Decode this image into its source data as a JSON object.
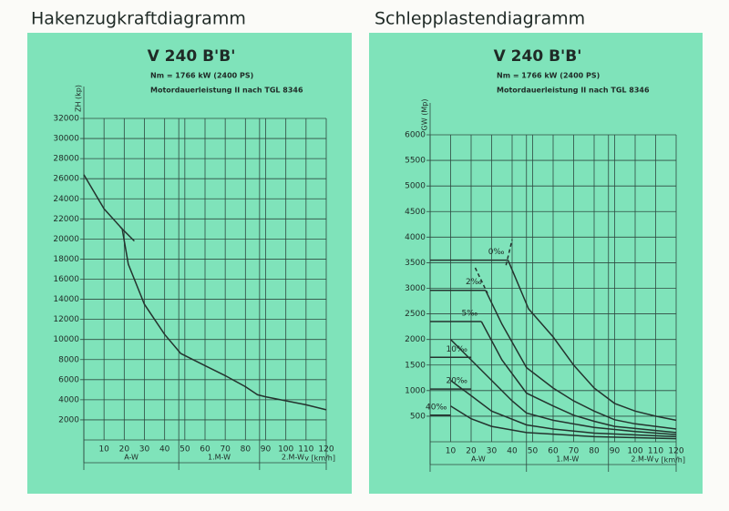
{
  "chart_data": [
    {
      "type": "line",
      "title": "Hakenzugkraftdiagramm",
      "heading": "V 240 B'B'",
      "subtitle": "Nm = 1766 kW (2400 PS)",
      "note": "Motordauerleistung II nach TGL 8346",
      "y_label": "ZH (kp)",
      "x_label": "v [km/h]",
      "xlim": [
        0,
        120
      ],
      "xticks": [
        10,
        20,
        30,
        40,
        50,
        60,
        70,
        80,
        90,
        100,
        110,
        120
      ],
      "ylim": [
        0,
        32000
      ],
      "yticks": [
        2000,
        4000,
        6000,
        8000,
        10000,
        12000,
        14000,
        16000,
        18000,
        20000,
        22000,
        24000,
        26000,
        28000,
        30000,
        32000
      ],
      "grid": true,
      "color": "#24332e",
      "ranges": [
        {
          "label": "A-W",
          "from": 0,
          "to": 47
        },
        {
          "label": "1.M-W",
          "from": 47,
          "to": 87
        },
        {
          "label": "2.M-W",
          "from": 87,
          "to": 120
        }
      ],
      "series": [
        {
          "x": [
            0,
            10,
            19,
            22,
            30,
            40,
            48,
            60,
            70,
            80,
            86,
            90,
            100,
            110,
            120
          ],
          "values": [
            26400,
            23000,
            21000,
            17500,
            13500,
            10500,
            8600,
            7400,
            6400,
            5300,
            4500,
            4300,
            3900,
            3500,
            3000
          ]
        },
        {
          "x": [
            18,
            25
          ],
          "values": [
            21200,
            19800
          ]
        }
      ]
    },
    {
      "type": "line",
      "title": "Schlepplastendiagramm",
      "heading": "V 240 B'B'",
      "subtitle": "Nm = 1766 kW (2400 PS)",
      "note": "Motordauerleistung II nach TGL 8346",
      "y_label": "GW (Mp)",
      "x_label": "v [km/h]",
      "xlim": [
        0,
        120
      ],
      "xticks": [
        10,
        20,
        30,
        40,
        50,
        60,
        70,
        80,
        90,
        100,
        110,
        120
      ],
      "ylim": [
        0,
        6000
      ],
      "yticks": [
        500,
        1000,
        1500,
        2000,
        2500,
        3000,
        3500,
        4000,
        4500,
        5000,
        5500,
        6000
      ],
      "grid": true,
      "color": "#24332e",
      "ranges": [
        {
          "label": "A-W",
          "from": 0,
          "to": 47
        },
        {
          "label": "1.M-W",
          "from": 47,
          "to": 87
        },
        {
          "label": "2.M-W",
          "from": 87,
          "to": 120
        }
      ],
      "series": [
        {
          "name": "0‰",
          "x": [
            0,
            38
          ],
          "values": [
            3550,
            3550
          ]
        },
        {
          "x": [
            37,
            40
          ],
          "values": [
            3450,
            3950
          ],
          "dashed": true
        },
        {
          "x": [
            38,
            48,
            60,
            70,
            80,
            90,
            100,
            110,
            120
          ],
          "values": [
            3550,
            2600,
            2050,
            1500,
            1050,
            750,
            600,
            500,
            420
          ]
        },
        {
          "name": "2‰",
          "x": [
            0,
            27
          ],
          "values": [
            2960,
            2960
          ]
        },
        {
          "x": [
            22,
            28
          ],
          "values": [
            3400,
            2900
          ],
          "dashed": true
        },
        {
          "x": [
            27,
            35,
            47,
            60,
            70,
            80,
            90,
            100,
            120
          ],
          "values": [
            2960,
            2300,
            1450,
            1050,
            800,
            600,
            430,
            350,
            250
          ]
        },
        {
          "name": "5‰",
          "x": [
            0,
            25
          ],
          "values": [
            2350,
            2350
          ]
        },
        {
          "x": [
            25,
            35,
            47,
            60,
            70,
            80,
            90,
            120
          ],
          "values": [
            2350,
            1600,
            950,
            700,
            520,
            400,
            300,
            180
          ]
        },
        {
          "name": "10‰",
          "x": [
            0,
            20
          ],
          "values": [
            1650,
            1650
          ]
        },
        {
          "x": [
            10,
            20,
            30,
            40,
            47,
            60,
            80,
            100,
            120
          ],
          "values": [
            2000,
            1600,
            1200,
            800,
            560,
            420,
            280,
            200,
            140
          ]
        },
        {
          "name": "20‰",
          "x": [
            0,
            20
          ],
          "values": [
            1030,
            1030
          ]
        },
        {
          "x": [
            10,
            20,
            30,
            47,
            60,
            80,
            120
          ],
          "values": [
            1200,
            900,
            600,
            330,
            250,
            170,
            100
          ]
        },
        {
          "name": "40‰",
          "x": [
            0,
            10
          ],
          "values": [
            520,
            520
          ]
        },
        {
          "x": [
            10,
            20,
            30,
            47,
            80,
            120
          ],
          "values": [
            700,
            450,
            300,
            180,
            100,
            60
          ]
        }
      ]
    }
  ]
}
